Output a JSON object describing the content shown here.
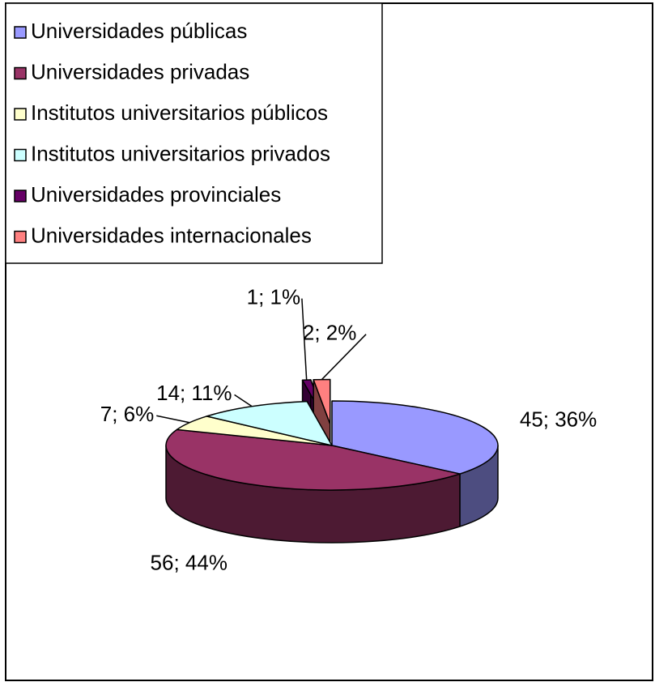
{
  "chart_data": {
    "type": "pie",
    "categories": [
      "Universidades públicas",
      "Universidades privadas",
      "Institutos universitarios públicos",
      "Institutos universitarios privados",
      "Universidades provinciales",
      "Universidades internacionales"
    ],
    "values": [
      45,
      56,
      7,
      14,
      1,
      2
    ],
    "value_labels": [
      "45; 36%",
      "56; 44%",
      "7; 6%",
      "14; 11%",
      "1; 1%",
      "2; 2%"
    ],
    "colors": [
      "#9999ff",
      "#993366",
      "#ffffcc",
      "#ccffff",
      "#660066",
      "#ff8080"
    ],
    "legend": "top-left"
  }
}
